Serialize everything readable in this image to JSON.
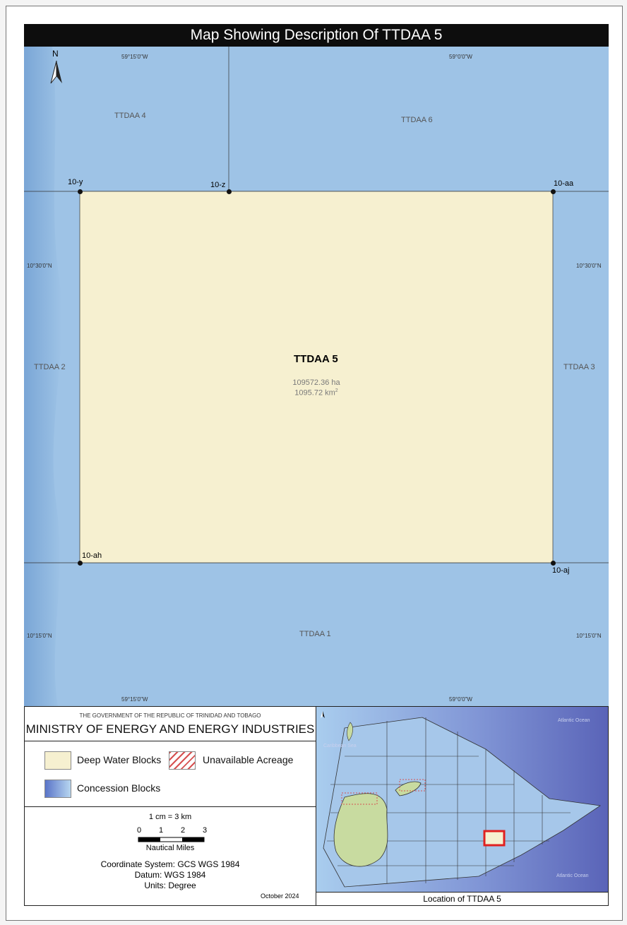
{
  "title": "Map Showing Description Of TTDAA 5",
  "map": {
    "north_label": "N",
    "longitudes": {
      "west": "59°15'0\"W",
      "east": "59°0'0\"W"
    },
    "latitudes": {
      "upper": "10°30'0\"N",
      "lower": "10°15'0\"N"
    },
    "blocks": {
      "ttdaa1": "TTDAA 1",
      "ttdaa2": "TTDAA 2",
      "ttdaa3": "TTDAA 3",
      "ttdaa4": "TTDAA 4",
      "ttdaa6": "TTDAA 6"
    },
    "points": {
      "p_y": "10-y",
      "p_z": "10-z",
      "p_aa": "10-aa",
      "p_ah": "10-ah",
      "p_aj": "10-aj"
    },
    "target": {
      "name": "TTDAA 5",
      "area_ha": "109572.36 ha",
      "area_km2": "1095.72 km",
      "area_km2_sup": "2"
    }
  },
  "footer": {
    "government": "THE GOVERNMENT OF THE REPUBLIC OF TRINIDAD AND TOBAGO",
    "ministry": "MINISTRY OF ENERGY AND ENERGY INDUSTRIES",
    "legend": {
      "deep_water": "Deep Water Blocks",
      "unavailable": "Unavailable Acreage",
      "concession": "Concession Blocks"
    },
    "scale": {
      "ratio": "1 cm = 3 km",
      "ticks": [
        "0",
        "1",
        "2",
        "3"
      ],
      "unit": "Nautical Miles"
    },
    "coordinate_system": "Coordinate System: GCS WGS 1984",
    "datum": "Datum: WGS 1984",
    "units": "Units: Degree",
    "date": "October 2024"
  },
  "inset": {
    "caption": "Location of TTDAA 5",
    "caribbean": "Caribbean Sea",
    "atlantic_top": "Atlantic Ocean",
    "atlantic_bottom": "Atlantic Ocean"
  },
  "colors": {
    "deep_water": "#f6f0d0",
    "concession": "#9ec3e6",
    "unavailable_hatch": "#d65050",
    "highlight": "#e02020"
  }
}
